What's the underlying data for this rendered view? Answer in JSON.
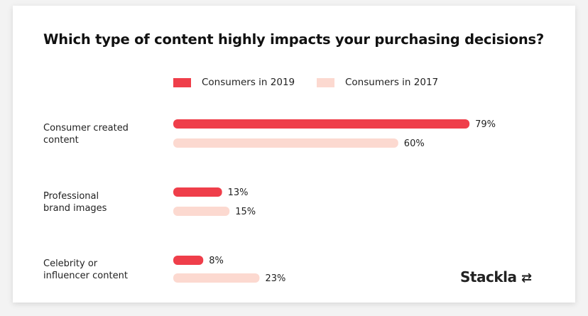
{
  "chart_data": {
    "type": "bar",
    "orientation": "horizontal",
    "title": "Which type of content highly impacts your purchasing decisions?",
    "categories": [
      "Consumer created content",
      "Professional brand images",
      "Celebrity or influencer content"
    ],
    "series": [
      {
        "name": "Consumers in 2019",
        "values": [
          79,
          13,
          8
        ],
        "color": "#ef3e4a"
      },
      {
        "name": "Consumers in 2017",
        "values": [
          60,
          15,
          23
        ],
        "color": "#fcd9d0"
      }
    ],
    "value_suffix": "%",
    "legend": "top",
    "grid": false
  },
  "category_lines": [
    [
      "Consumer created",
      "content"
    ],
    [
      "Professional",
      "brand images"
    ],
    [
      "Celebrity or",
      "influencer content"
    ]
  ],
  "brand": "Stackla"
}
